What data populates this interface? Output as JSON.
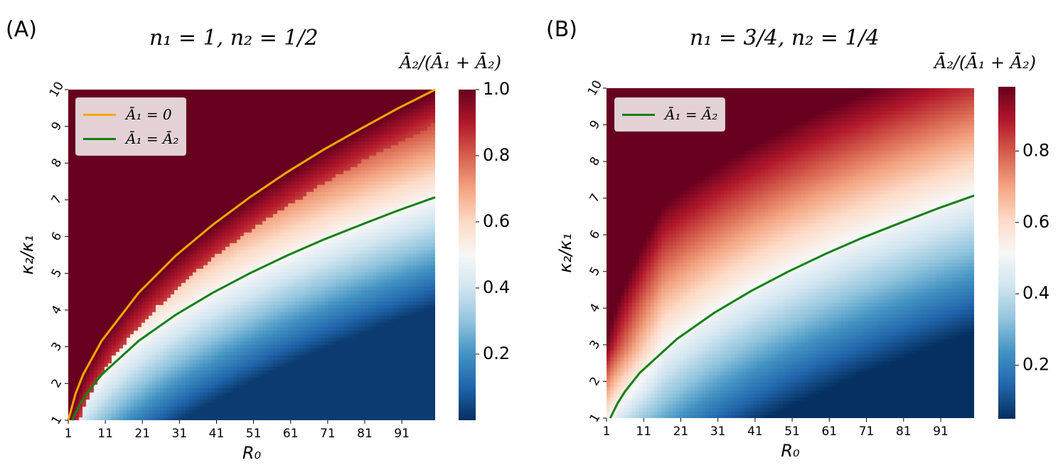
{
  "colormap": {
    "name": "RdBu_r",
    "stops": [
      "#053061",
      "#2166ac",
      "#4393c3",
      "#92c5de",
      "#d1e5f0",
      "#f7f7f7",
      "#fddbc7",
      "#f4a582",
      "#d6604d",
      "#b2182b",
      "#67001f"
    ]
  },
  "colors": {
    "orange_line": "#ffa500",
    "green_line": "#128012"
  },
  "chart_data": [
    {
      "type": "heatmap",
      "panel_label": "(A)",
      "title": "n₁ = 1, n₂ = 1/2",
      "xlabel": "R₀",
      "ylabel": "κ₂/κ₁",
      "x_range": [
        1,
        100
      ],
      "y_range": [
        1,
        10
      ],
      "xticks": [
        "1",
        "11",
        "21",
        "31",
        "41",
        "51",
        "61",
        "71",
        "81",
        "91"
      ],
      "yticks": [
        "1",
        "2",
        "3",
        "4",
        "5",
        "6",
        "7",
        "8",
        "9",
        "10"
      ],
      "colorbar": {
        "title": "Ā₂/(Ā₁ + Ā₂)",
        "range": [
          0.0,
          1.0
        ],
        "ticks": [
          "0.2",
          "0.4",
          "0.6",
          "0.8",
          "1.0"
        ]
      },
      "legend": [
        {
          "label": "Ā₁ = 0",
          "color": "#ffa500"
        },
        {
          "label": "Ā₁ = Ā₂",
          "color": "#128012"
        }
      ],
      "lines": [
        {
          "name": "A1 = 0",
          "color": "#ffa500",
          "x": [
            1,
            3,
            5,
            10,
            20,
            30,
            40,
            50,
            60,
            70,
            80,
            90,
            100
          ],
          "y": [
            1.0,
            1.73,
            2.24,
            3.16,
            4.47,
            5.48,
            6.32,
            7.07,
            7.75,
            8.37,
            8.94,
            9.49,
            10.0
          ]
        },
        {
          "name": "A1 = A2",
          "color": "#128012",
          "x": [
            2,
            4,
            6,
            10,
            20,
            30,
            40,
            50,
            60,
            70,
            80,
            90,
            100
          ],
          "y": [
            1.0,
            1.41,
            1.73,
            2.24,
            3.16,
            3.87,
            4.47,
            5.0,
            5.48,
            5.92,
            6.32,
            6.71,
            7.07
          ]
        }
      ]
    },
    {
      "type": "heatmap",
      "panel_label": "(B)",
      "title": "n₁ = 3/4, n₂ = 1/4",
      "xlabel": "R₀",
      "ylabel": "κ₂/κ₁",
      "x_range": [
        1,
        100
      ],
      "y_range": [
        1,
        10
      ],
      "xticks": [
        "1",
        "11",
        "21",
        "31",
        "41",
        "51",
        "61",
        "71",
        "81",
        "91"
      ],
      "yticks": [
        "1",
        "2",
        "3",
        "4",
        "5",
        "6",
        "7",
        "8",
        "9",
        "10"
      ],
      "colorbar": {
        "title": "Ā₂/(Ā₁ + Ā₂)",
        "range": [
          0.05,
          0.98
        ],
        "ticks": [
          "0.2",
          "0.4",
          "0.6",
          "0.8"
        ]
      },
      "legend": [
        {
          "label": "Ā₁ = Ā₂",
          "color": "#128012"
        }
      ],
      "lines": [
        {
          "name": "A1 = A2",
          "color": "#128012",
          "x": [
            2,
            4,
            6,
            10,
            20,
            30,
            40,
            50,
            60,
            70,
            80,
            90,
            100
          ],
          "y": [
            1.0,
            1.41,
            1.73,
            2.24,
            3.16,
            3.87,
            4.47,
            5.0,
            5.48,
            5.92,
            6.32,
            6.71,
            7.07
          ]
        }
      ]
    }
  ]
}
